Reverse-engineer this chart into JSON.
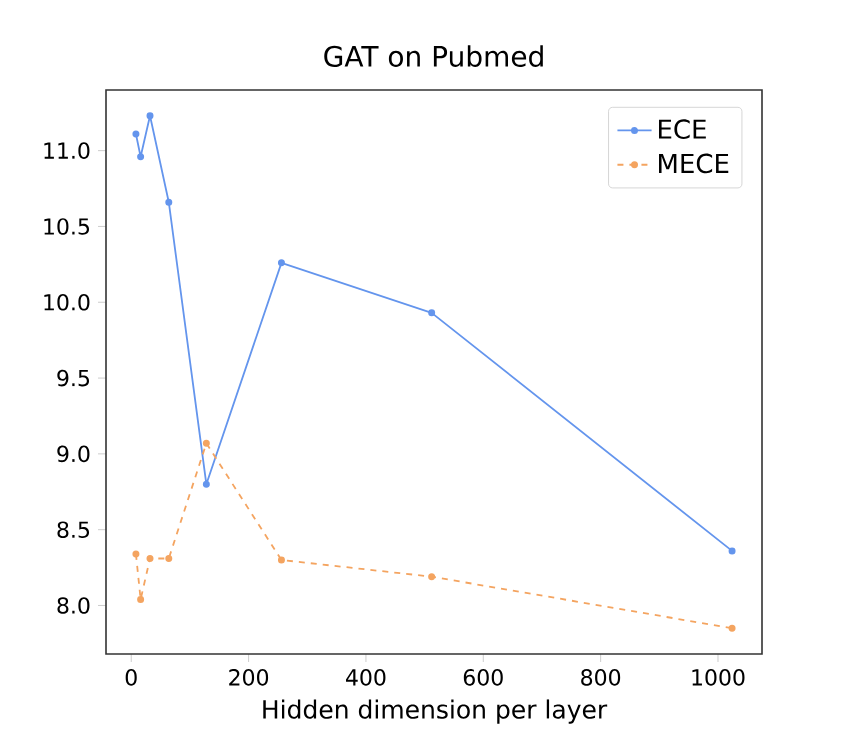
{
  "chart_data": {
    "type": "line",
    "title": "GAT on Pubmed",
    "xlabel": "Hidden dimension per layer",
    "x": [
      8,
      16,
      32,
      64,
      128,
      256,
      512,
      1024
    ],
    "series": [
      {
        "name": "ECE",
        "color": "#6495ed",
        "line_style": "solid",
        "values": [
          11.11,
          10.96,
          11.23,
          10.66,
          8.8,
          10.26,
          9.93,
          8.36
        ]
      },
      {
        "name": "MECE",
        "color": "#f4a460",
        "line_style": "dashed",
        "values": [
          8.34,
          8.04,
          8.31,
          8.31,
          9.07,
          8.3,
          8.19,
          7.85
        ]
      }
    ],
    "xlim": [
      -43,
      1075
    ],
    "ylim": [
      7.68,
      11.4
    ],
    "xticks": [
      0,
      200,
      400,
      600,
      800,
      1000
    ],
    "yticks": [
      {
        "value": 8,
        "label": "8.0"
      },
      {
        "value": 8.5,
        "label": "8.5"
      },
      {
        "value": 9,
        "label": "9.0"
      },
      {
        "value": 9.5,
        "label": "9.5"
      },
      {
        "value": 10,
        "label": "10.0"
      },
      {
        "value": 10.5,
        "label": "10.5"
      },
      {
        "value": 11,
        "label": "11.0"
      }
    ],
    "marker": "circle",
    "grid": false,
    "legend": "top right"
  }
}
